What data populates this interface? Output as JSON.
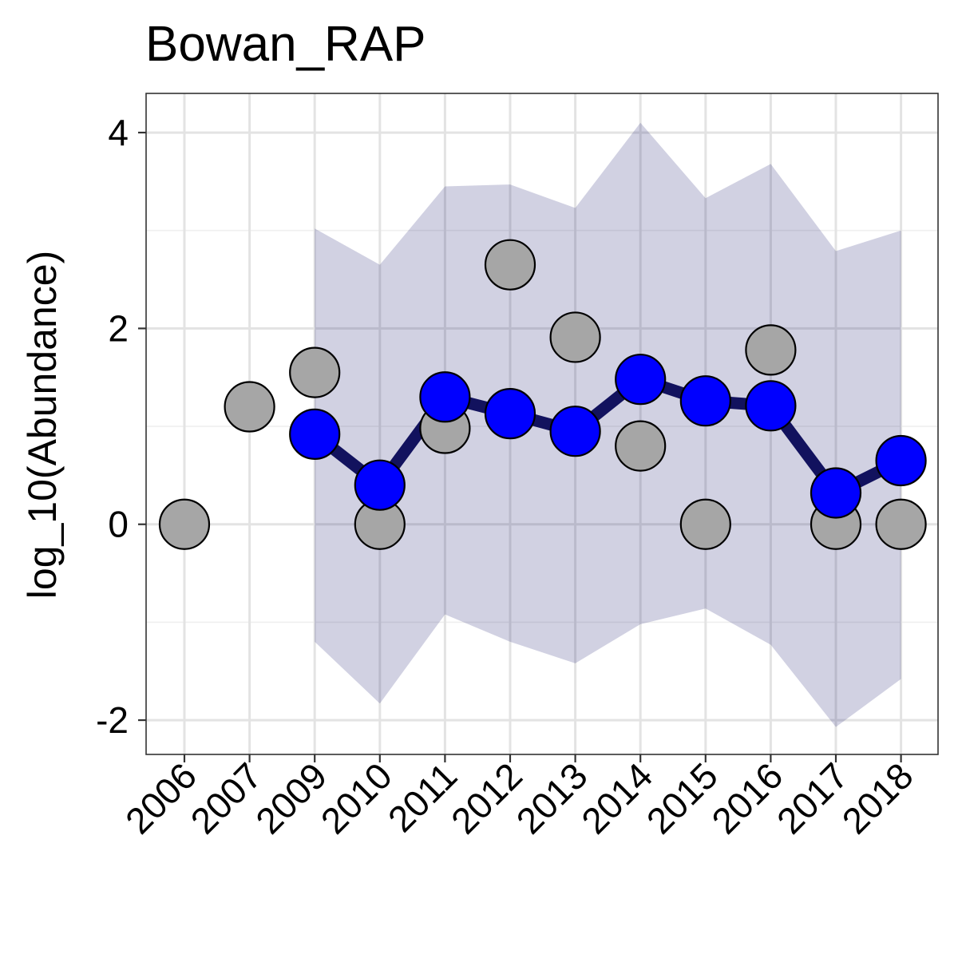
{
  "chart_data": {
    "type": "line",
    "title": "Bowan_RAP",
    "xlabel": "",
    "ylabel": "log_10(Abundance)",
    "categories": [
      "2006",
      "2007",
      "2009",
      "2010",
      "2011",
      "2012",
      "2013",
      "2014",
      "2015",
      "2016",
      "2017",
      "2018"
    ],
    "ylim": [
      -2.35,
      4.4
    ],
    "yticks": [
      "4",
      "2",
      "0",
      "-2"
    ],
    "grid": true,
    "legend": "none",
    "observed": {
      "color": "#a6a6a6",
      "values": [
        0,
        1.2,
        1.55,
        0,
        0.98,
        2.65,
        1.91,
        0.8,
        0,
        1.78,
        0,
        0
      ]
    },
    "fitted": {
      "color": "#0000ff",
      "line_color": "#12125e",
      "values": [
        null,
        null,
        0.92,
        0.4,
        1.3,
        1.13,
        0.95,
        1.48,
        1.26,
        1.21,
        0.32,
        0.65
      ]
    },
    "interval": {
      "color": "#d0d0e2",
      "lower": [
        null,
        null,
        -1.2,
        -1.83,
        -0.92,
        -1.2,
        -1.42,
        -1.02,
        -0.86,
        -1.23,
        -2.07,
        -1.58
      ],
      "upper": [
        null,
        null,
        3.02,
        2.65,
        3.45,
        3.47,
        3.23,
        4.1,
        3.33,
        3.68,
        2.79,
        3.0
      ]
    }
  }
}
